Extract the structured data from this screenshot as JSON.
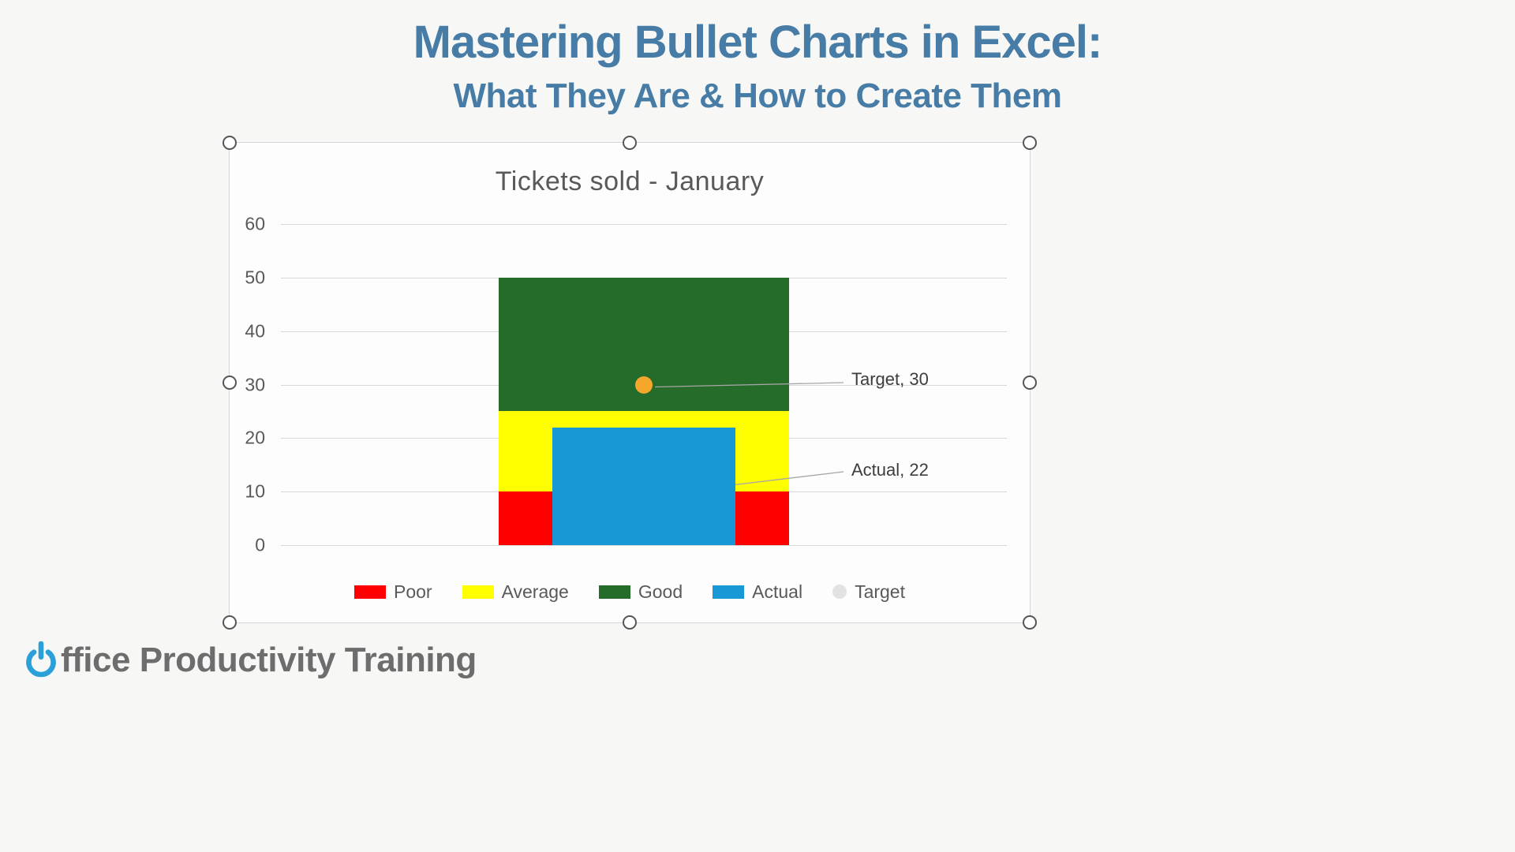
{
  "header": {
    "title_line1": "Mastering Bullet Charts in Excel:",
    "title_line2": "What They Are & How to Create Them"
  },
  "footer": {
    "brand_full": "Office Productivity Training",
    "brand_rest": "ffice Productivity Training"
  },
  "colors": {
    "heading": "#477ca6",
    "brand_icon": "#2a9fd8",
    "brand_text": "#6d6d6d",
    "page_background": "#f7f8f6",
    "chart_card_background": "#fdfdfd",
    "gridline": "#d9d9d9",
    "axis_text": "#595959"
  },
  "chart_data": {
    "type": "bar",
    "variant": "bullet",
    "title": "Tickets sold - January",
    "ylim": [
      0,
      60
    ],
    "y_ticks": [
      0,
      10,
      20,
      30,
      40,
      50,
      60
    ],
    "grid": true,
    "legend_position": "bottom",
    "bands": [
      {
        "name": "Poor",
        "from": 0,
        "to": 10,
        "color": "#fe0000"
      },
      {
        "name": "Average",
        "from": 10,
        "to": 25,
        "color": "#ffff00"
      },
      {
        "name": "Good",
        "from": 25,
        "to": 50,
        "color": "#256b2a"
      }
    ],
    "actual": {
      "name": "Actual",
      "value": 22,
      "color": "#1899d6",
      "label": "Actual, 22"
    },
    "target": {
      "name": "Target",
      "value": 30,
      "color": "#f5a72c",
      "label": "Target, 30"
    },
    "legend": [
      {
        "label": "Poor",
        "color": "#fe0000",
        "shape": "rect"
      },
      {
        "label": "Average",
        "color": "#ffff00",
        "shape": "rect"
      },
      {
        "label": "Good",
        "color": "#256b2a",
        "shape": "rect"
      },
      {
        "label": "Actual",
        "color": "#1899d6",
        "shape": "rect"
      },
      {
        "label": "Target",
        "color": "#e2e2e2",
        "shape": "circle"
      }
    ]
  }
}
